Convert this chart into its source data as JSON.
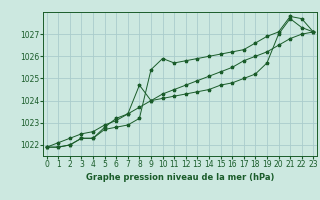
{
  "title": "Graphe pression niveau de la mer (hPa)",
  "background_color": "#cce8e0",
  "grid_color": "#aacccc",
  "line_color": "#1a5c2a",
  "x_ticks": [
    0,
    1,
    2,
    3,
    4,
    5,
    6,
    7,
    8,
    9,
    10,
    11,
    12,
    13,
    14,
    15,
    16,
    17,
    18,
    19,
    20,
    21,
    22,
    23
  ],
  "y_ticks": [
    1022,
    1023,
    1024,
    1025,
    1026,
    1027
  ],
  "ylim": [
    1021.5,
    1028.0
  ],
  "xlim": [
    -0.3,
    23.3
  ],
  "series1": [
    1021.9,
    1021.9,
    1022.0,
    1022.3,
    1022.3,
    1022.7,
    1022.8,
    1022.9,
    1023.2,
    1025.4,
    1025.9,
    1025.7,
    1025.8,
    1025.9,
    1026.0,
    1026.1,
    1026.2,
    1026.3,
    1026.6,
    1026.9,
    1027.1,
    1027.8,
    1027.7,
    1027.1
  ],
  "series2": [
    1021.9,
    1021.9,
    1022.0,
    1022.3,
    1022.3,
    1022.8,
    1023.2,
    1023.4,
    1024.7,
    1024.0,
    1024.1,
    1024.2,
    1024.3,
    1024.4,
    1024.5,
    1024.7,
    1024.8,
    1025.0,
    1025.2,
    1025.7,
    1027.0,
    1027.7,
    1027.3,
    1027.1
  ],
  "series3": [
    1021.9,
    1022.1,
    1022.3,
    1022.5,
    1022.6,
    1022.9,
    1023.1,
    1023.4,
    1023.7,
    1024.0,
    1024.3,
    1024.5,
    1024.7,
    1024.9,
    1025.1,
    1025.3,
    1025.5,
    1025.8,
    1026.0,
    1026.2,
    1026.5,
    1026.8,
    1027.0,
    1027.1
  ],
  "tick_fontsize": 5.5,
  "xlabel_fontsize": 6.0,
  "linewidth": 0.7,
  "markersize": 2.5
}
